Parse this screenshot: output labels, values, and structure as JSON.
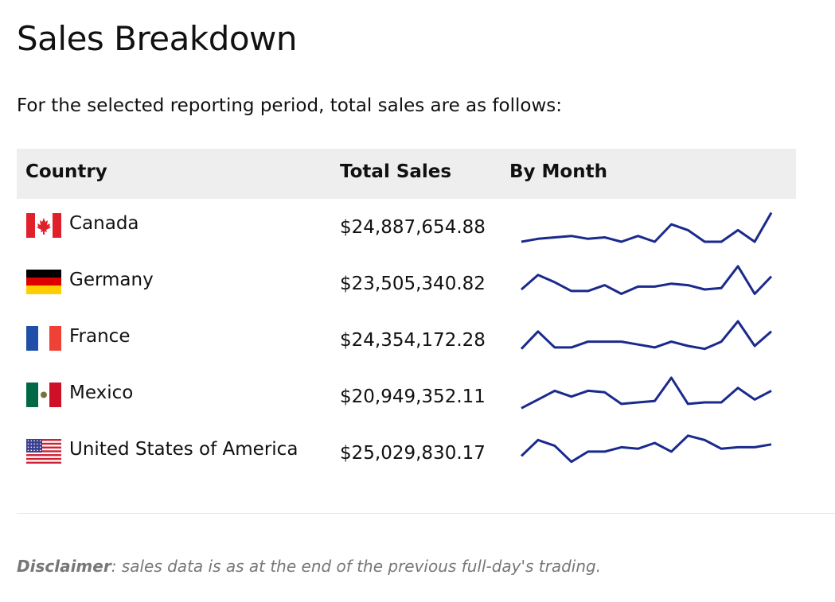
{
  "title": "Sales Breakdown",
  "intro": "For the selected reporting period, total sales are as follows:",
  "table": {
    "headers": {
      "country": "Country",
      "total_sales": "Total Sales",
      "by_month": "By Month"
    },
    "rows": [
      {
        "country": "Canada",
        "flag": "canada-flag-icon",
        "total": "$24,887,654.88",
        "months": [
          2.0,
          2.4,
          2.6,
          2.8,
          2.4,
          2.6,
          2.0,
          2.8,
          2.0,
          4.4,
          3.6,
          2.0,
          2.0,
          3.6,
          2.0,
          6.0
        ]
      },
      {
        "country": "Germany",
        "flag": "germany-flag-icon",
        "total": "$23,505,340.82",
        "months": [
          3.2,
          5.2,
          4.2,
          3.0,
          3.0,
          3.8,
          2.6,
          3.6,
          3.6,
          4.0,
          3.8,
          3.2,
          3.4,
          6.4,
          2.6,
          5.0
        ]
      },
      {
        "country": "France",
        "flag": "france-flag-icon",
        "total": "$24,354,172.28",
        "months": [
          2.8,
          5.2,
          3.0,
          3.0,
          3.8,
          3.8,
          3.8,
          3.4,
          3.0,
          3.8,
          3.2,
          2.8,
          3.8,
          6.6,
          3.2,
          5.2
        ]
      },
      {
        "country": "Mexico",
        "flag": "mexico-flag-icon",
        "total": "$20,949,352.11",
        "months": [
          2.4,
          3.6,
          4.8,
          4.0,
          4.8,
          4.6,
          3.0,
          3.2,
          3.4,
          6.6,
          3.0,
          3.2,
          3.2,
          5.2,
          3.6,
          4.8
        ]
      },
      {
        "country": "United States of America",
        "flag": "usa-flag-icon",
        "total": "$25,029,830.17",
        "months": [
          3.6,
          5.8,
          5.0,
          2.8,
          4.2,
          4.2,
          4.8,
          4.6,
          5.4,
          4.2,
          6.4,
          5.8,
          4.6,
          4.8,
          4.8,
          5.2
        ]
      }
    ]
  },
  "disclaimer": {
    "label": "Disclaimer",
    "text": ": sales data is as at the end of the previous full-day's trading."
  },
  "colors": {
    "sparkline": "#1a2a8c",
    "header_bg": "#eeeeee",
    "disclaimer_text": "#777777"
  }
}
